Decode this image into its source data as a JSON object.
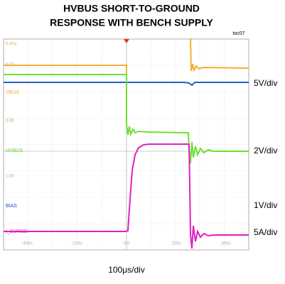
{
  "title_lines": [
    "HVBUS SHORT-TO-GROUND",
    "RESPONSE WITH BENCH SUPPLY"
  ],
  "figure_id": "toc07",
  "level_labels": [
    "6.00V",
    "5.00",
    "3.00",
    "1.00"
  ],
  "channels": [
    {
      "name": "VBUS",
      "scale": "5V/div"
    },
    {
      "name": "HVBUS",
      "scale": "2V/div"
    },
    {
      "name": "BIAS",
      "scale": "1V/div"
    },
    {
      "name": "I_SURGE",
      "scale": "5A/div"
    }
  ],
  "time_labels": [
    "-400u",
    "-200u",
    "0.0",
    "200u",
    "400u"
  ],
  "timebase": "100μs/div"
}
